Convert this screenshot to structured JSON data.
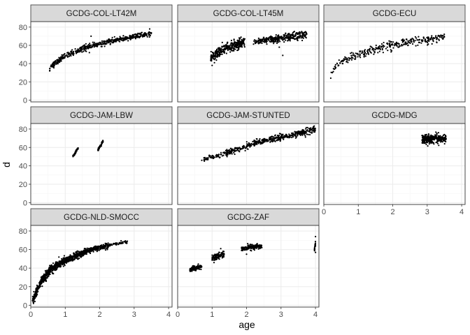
{
  "chart_data": {
    "type": "scatter",
    "layout": "facet_wrap 3 columns",
    "xlabel": "age",
    "ylabel": "d",
    "xlim": [
      0,
      4.1
    ],
    "ylim": [
      -2,
      86
    ],
    "x_ticks": [
      0,
      1,
      2,
      3,
      4
    ],
    "y_ticks": [
      0,
      20,
      40,
      60,
      80
    ],
    "grid": true,
    "theme": "bw",
    "colors": {
      "point": "#000000",
      "strip_fill": "#d9d9d9",
      "panel_border": "#333333",
      "grid_major": "#ebebeb",
      "grid_minor": "#f5f5f5"
    },
    "panels": [
      {
        "name": "GCDG-COL-LT42M",
        "bands": [
          {
            "x0": 0.55,
            "x1": 0.9,
            "y0": 35,
            "y1": 46,
            "spread": 3.5,
            "n": 70,
            "shape": 0.9
          },
          {
            "x0": 0.9,
            "x1": 1.6,
            "y0": 46,
            "y1": 58,
            "spread": 3.5,
            "n": 110,
            "shape": 0.9
          },
          {
            "x0": 1.6,
            "x1": 2.5,
            "y0": 58,
            "y1": 66,
            "spread": 3,
            "n": 150,
            "shape": 1
          },
          {
            "x0": 2.5,
            "x1": 3.5,
            "y0": 66,
            "y1": 73,
            "spread": 3,
            "n": 170,
            "shape": 1
          }
        ],
        "outliers": [
          [
            0.55,
            32
          ],
          [
            1.75,
            70
          ],
          [
            1.7,
            52
          ],
          [
            3.45,
            78
          ]
        ]
      },
      {
        "name": "GCDG-COL-LT45M",
        "bands": [
          {
            "x0": 0.95,
            "x1": 1.15,
            "y0": 44,
            "y1": 52,
            "spread": 6,
            "n": 70,
            "shape": 1
          },
          {
            "x0": 1.15,
            "x1": 1.95,
            "y0": 52,
            "y1": 64,
            "spread": 6,
            "n": 260,
            "shape": 0.9
          },
          {
            "x0": 2.2,
            "x1": 2.75,
            "y0": 63,
            "y1": 68,
            "spread": 4,
            "n": 110,
            "shape": 1
          },
          {
            "x0": 2.75,
            "x1": 3.75,
            "y0": 66,
            "y1": 72,
            "spread": 5,
            "n": 220,
            "shape": 1
          }
        ],
        "outliers": [
          [
            3.05,
            49
          ],
          [
            1.0,
            38
          ],
          [
            2.95,
            58
          ]
        ]
      },
      {
        "name": "GCDG-ECU",
        "bands": [
          {
            "x0": 0.2,
            "x1": 0.4,
            "y0": 27,
            "y1": 40,
            "spread": 3,
            "n": 12,
            "shape": 1
          },
          {
            "x0": 0.4,
            "x1": 1.0,
            "y0": 40,
            "y1": 50,
            "spread": 5,
            "n": 50,
            "shape": 1
          },
          {
            "x0": 1.0,
            "x1": 1.9,
            "y0": 50,
            "y1": 60,
            "spread": 5,
            "n": 80,
            "shape": 1
          },
          {
            "x0": 1.9,
            "x1": 3.5,
            "y0": 60,
            "y1": 69,
            "spread": 5,
            "n": 160,
            "shape": 1
          }
        ],
        "outliers": [
          [
            0.2,
            24
          ]
        ]
      },
      {
        "name": "GCDG-JAM-LBW",
        "bands": [
          {
            "x0": 1.22,
            "x1": 1.38,
            "y0": 50,
            "y1": 60,
            "spread": 1.5,
            "n": 45,
            "shape": 1
          },
          {
            "x0": 1.95,
            "x1": 2.1,
            "y0": 57,
            "y1": 67,
            "spread": 1.5,
            "n": 55,
            "shape": 1
          }
        ],
        "outliers": []
      },
      {
        "name": "GCDG-JAM-STUNTED",
        "bands": [
          {
            "x0": 0.75,
            "x1": 1.4,
            "y0": 47,
            "y1": 54,
            "spread": 3,
            "n": 60,
            "shape": 1
          },
          {
            "x0": 1.4,
            "x1": 2.4,
            "y0": 54,
            "y1": 66,
            "spread": 4,
            "n": 160,
            "shape": 1
          },
          {
            "x0": 2.4,
            "x1": 3.5,
            "y0": 66,
            "y1": 75,
            "spread": 4,
            "n": 200,
            "shape": 1
          },
          {
            "x0": 3.5,
            "x1": 4.0,
            "y0": 75,
            "y1": 79,
            "spread": 4,
            "n": 110,
            "shape": 1
          }
        ],
        "outliers": [
          [
            0.7,
            46
          ]
        ]
      },
      {
        "name": "GCDG-MDG",
        "bands": [
          {
            "x0": 2.85,
            "x1": 3.55,
            "y0": 69,
            "y1": 70,
            "spread": 5,
            "n": 320,
            "shape": 1
          }
        ],
        "outliers": [
          [
            2.85,
            73
          ],
          [
            3.5,
            74
          ]
        ]
      },
      {
        "name": "GCDG-NLD-SMOCC",
        "bands": [
          {
            "x0": 0.05,
            "x1": 0.25,
            "y0": 5,
            "y1": 22,
            "spread": 5,
            "n": 120,
            "shape": 1
          },
          {
            "x0": 0.25,
            "x1": 0.55,
            "y0": 22,
            "y1": 38,
            "spread": 5,
            "n": 170,
            "shape": 1
          },
          {
            "x0": 0.55,
            "x1": 1.0,
            "y0": 38,
            "y1": 48,
            "spread": 5,
            "n": 220,
            "shape": 1
          },
          {
            "x0": 1.0,
            "x1": 1.6,
            "y0": 48,
            "y1": 58,
            "spread": 4,
            "n": 260,
            "shape": 1
          },
          {
            "x0": 1.6,
            "x1": 2.3,
            "y0": 58,
            "y1": 65,
            "spread": 3,
            "n": 220,
            "shape": 1
          },
          {
            "x0": 2.3,
            "x1": 2.8,
            "y0": 65,
            "y1": 68,
            "spread": 1.5,
            "n": 50,
            "shape": 1
          }
        ],
        "outliers": [
          [
            0.08,
            2
          ],
          [
            0.12,
            4
          ],
          [
            2.8,
            69
          ]
        ]
      },
      {
        "name": "GCDG-ZAF",
        "bands": [
          {
            "x0": 0.35,
            "x1": 0.7,
            "y0": 38,
            "y1": 42,
            "spread": 3,
            "n": 110,
            "shape": 1
          },
          {
            "x0": 1.0,
            "x1": 1.35,
            "y0": 51,
            "y1": 55,
            "spread": 4,
            "n": 110,
            "shape": 1
          },
          {
            "x0": 1.85,
            "x1": 2.45,
            "y0": 61,
            "y1": 64,
            "spread": 3,
            "n": 170,
            "shape": 1
          },
          {
            "x0": 3.97,
            "x1": 4.0,
            "y0": 60,
            "y1": 66,
            "spread": 3,
            "n": 25,
            "shape": 1
          }
        ],
        "outliers": [
          [
            4.0,
            74
          ],
          [
            4.0,
            57
          ],
          [
            1.25,
            61
          ],
          [
            2.0,
            55
          ]
        ]
      }
    ]
  }
}
